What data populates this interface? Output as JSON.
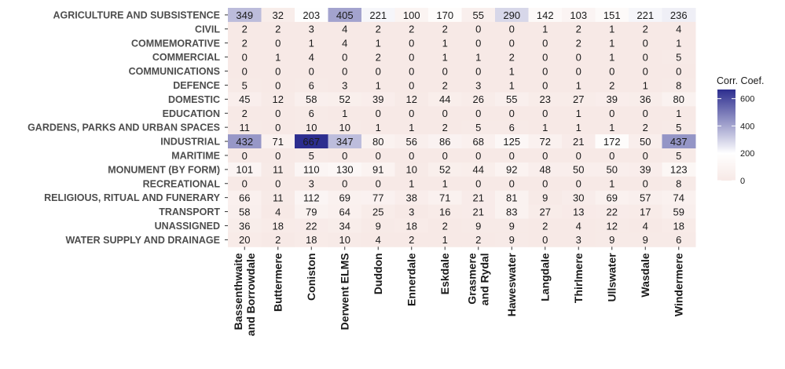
{
  "chart_data": {
    "type": "heatmap",
    "rows": [
      "AGRICULTURE AND SUBSISTENCE",
      "CIVIL",
      "COMMEMORATIVE",
      "COMMERCIAL",
      "COMMUNICATIONS",
      "DEFENCE",
      "DOMESTIC",
      "EDUCATION",
      "GARDENS, PARKS AND URBAN SPACES",
      "INDUSTRIAL",
      "MARITIME",
      "MONUMENT (BY FORM)",
      "RECREATIONAL",
      "RELIGIOUS, RITUAL AND FUNERARY",
      "TRANSPORT",
      "UNASSIGNED",
      "WATER SUPPLY AND DRAINAGE"
    ],
    "columns": [
      [
        "Bassenthwaite",
        "and Borrowdale"
      ],
      [
        "Buttermere"
      ],
      [
        "Coniston"
      ],
      [
        "Derwent ELMS"
      ],
      [
        "Duddon"
      ],
      [
        "Ennerdale"
      ],
      [
        "Eskdale"
      ],
      [
        "Grasmere",
        "and Rydal"
      ],
      [
        "Haweswater"
      ],
      [
        "Langdale"
      ],
      [
        "Thirlmere"
      ],
      [
        "Ullswater"
      ],
      [
        "Wasdale"
      ],
      [
        "Windermere"
      ]
    ],
    "values": [
      [
        349,
        32,
        203,
        405,
        221,
        100,
        170,
        55,
        290,
        142,
        103,
        151,
        221,
        236
      ],
      [
        2,
        2,
        3,
        4,
        2,
        2,
        2,
        0,
        0,
        1,
        2,
        1,
        2,
        4
      ],
      [
        2,
        0,
        1,
        4,
        1,
        0,
        1,
        0,
        0,
        0,
        2,
        1,
        0,
        1
      ],
      [
        0,
        1,
        4,
        0,
        2,
        0,
        1,
        1,
        2,
        0,
        0,
        1,
        0,
        5
      ],
      [
        0,
        0,
        0,
        0,
        0,
        0,
        0,
        0,
        1,
        0,
        0,
        0,
        0,
        0
      ],
      [
        5,
        0,
        6,
        3,
        1,
        0,
        2,
        3,
        1,
        0,
        1,
        2,
        1,
        8
      ],
      [
        45,
        12,
        58,
        52,
        39,
        12,
        44,
        26,
        55,
        23,
        27,
        39,
        36,
        80
      ],
      [
        2,
        0,
        6,
        1,
        0,
        0,
        0,
        0,
        0,
        0,
        1,
        0,
        0,
        1
      ],
      [
        11,
        0,
        10,
        10,
        1,
        1,
        2,
        5,
        6,
        1,
        1,
        1,
        2,
        5
      ],
      [
        432,
        71,
        667,
        347,
        80,
        56,
        86,
        68,
        125,
        72,
        21,
        172,
        50,
        437
      ],
      [
        0,
        0,
        5,
        0,
        0,
        0,
        0,
        0,
        0,
        0,
        0,
        0,
        0,
        5
      ],
      [
        101,
        11,
        110,
        130,
        91,
        10,
        52,
        44,
        92,
        48,
        50,
        50,
        39,
        123
      ],
      [
        0,
        0,
        3,
        0,
        0,
        1,
        1,
        0,
        0,
        0,
        0,
        1,
        0,
        8
      ],
      [
        66,
        11,
        112,
        69,
        77,
        38,
        71,
        21,
        81,
        9,
        30,
        69,
        57,
        74
      ],
      [
        58,
        4,
        79,
        64,
        25,
        3,
        16,
        21,
        83,
        27,
        13,
        22,
        17,
        59
      ],
      [
        36,
        18,
        22,
        34,
        9,
        18,
        2,
        9,
        9,
        2,
        4,
        12,
        4,
        18
      ],
      [
        20,
        2,
        18,
        10,
        4,
        2,
        1,
        2,
        9,
        0,
        3,
        9,
        9,
        6
      ]
    ],
    "legend": {
      "title": "Corr. Coef.",
      "ticks": [
        0,
        200,
        400,
        600
      ],
      "range": [
        0,
        667
      ],
      "placement": "right"
    },
    "colors": {
      "low": "#f7e9e6",
      "mid": "#ffffff",
      "high": "#2d2e8f"
    }
  }
}
